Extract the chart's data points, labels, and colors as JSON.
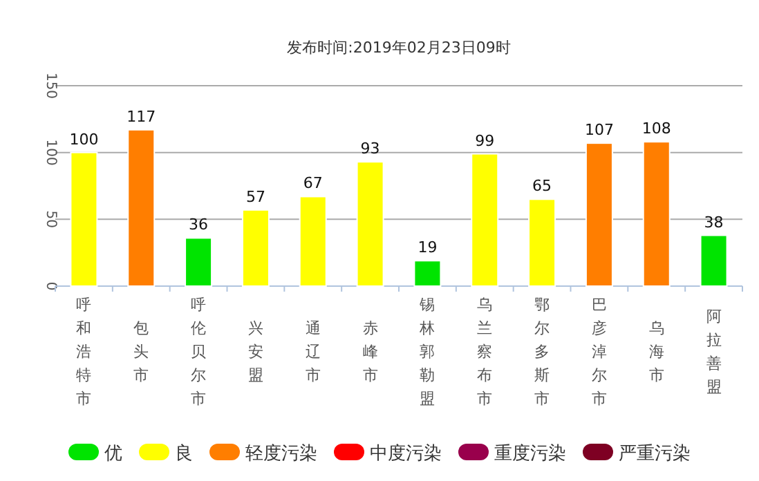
{
  "chart_data": {
    "type": "bar",
    "title": "发布时间:2019年02月23日09时",
    "categories": [
      "呼和浩特市",
      "包头市",
      "呼伦贝尔市",
      "兴安盟",
      "通辽市",
      "赤峰市",
      "锡林郭勒盟",
      "乌兰察布市",
      "鄂尔多斯市",
      "巴彦淖尔市",
      "乌海市",
      "阿拉善盟"
    ],
    "stacked": true,
    "series": [
      {
        "name": "优",
        "color": "#00e400",
        "values": [
          null,
          null,
          36,
          null,
          null,
          null,
          19,
          null,
          null,
          null,
          null,
          38
        ]
      },
      {
        "name": "良",
        "color": "#ffff00",
        "values": [
          100,
          null,
          null,
          57,
          67,
          93,
          null,
          99,
          65,
          null,
          null,
          null
        ]
      },
      {
        "name": "轻度污染",
        "color": "#ff7e00",
        "values": [
          null,
          117,
          null,
          null,
          null,
          null,
          null,
          null,
          null,
          107,
          108,
          null
        ]
      },
      {
        "name": "中度污染",
        "color": "#ff0000",
        "values": [
          null,
          null,
          null,
          null,
          null,
          null,
          null,
          null,
          null,
          null,
          null,
          null
        ]
      },
      {
        "name": "重度污染",
        "color": "#99004c",
        "values": [
          null,
          null,
          null,
          null,
          null,
          null,
          null,
          null,
          null,
          null,
          null,
          null
        ]
      },
      {
        "name": "严重污染",
        "color": "#7e0023",
        "values": [
          null,
          null,
          null,
          null,
          null,
          null,
          null,
          null,
          null,
          null,
          null,
          null
        ]
      }
    ],
    "ylim": [
      0,
      150
    ],
    "yticks": [
      0,
      50,
      100,
      150
    ],
    "grid": "y",
    "data_labels": true,
    "legend": "bottom"
  }
}
